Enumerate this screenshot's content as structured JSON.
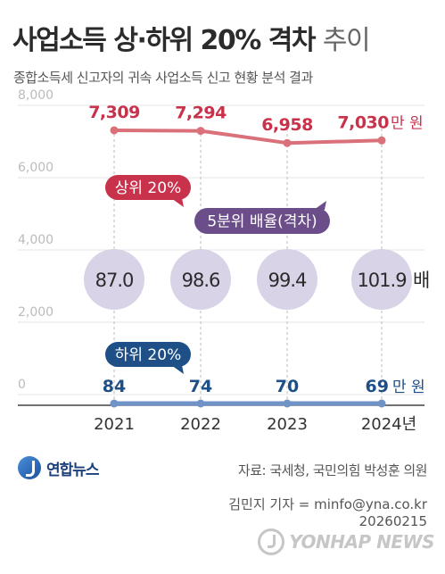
{
  "header": {
    "title": "사업소득 상·하위 20% 격차",
    "title_suffix": "추이",
    "subtitle": "종합소득세 신고자의 귀속 사업소득 신고 현황 분석 결과"
  },
  "chart_data": {
    "type": "line",
    "categories": [
      "2021",
      "2022",
      "2023",
      "2024년"
    ],
    "ylim": [
      0,
      8000
    ],
    "y_ticks": [
      "0",
      "2,000",
      "4,000",
      "6,000",
      "8,000"
    ],
    "grid": true,
    "unit": "만 원",
    "series": [
      {
        "name": "상위 20%",
        "values": [
          7309,
          7294,
          6958,
          7030
        ],
        "labels": [
          "7,309",
          "7,294",
          "6,958",
          "7,030"
        ],
        "color": "#d9707a"
      },
      {
        "name": "하위 20%",
        "values": [
          84,
          74,
          70,
          69
        ],
        "labels": [
          "84",
          "74",
          "70",
          "69"
        ],
        "color": "#6f92c7"
      }
    ],
    "ratio": {
      "name": "5분위 배율",
      "name_suffix": "(격차)",
      "values": [
        87.0,
        98.6,
        99.4,
        101.9
      ],
      "labels": [
        "87.0",
        "98.6",
        "99.4",
        "101.9"
      ],
      "unit": "배"
    },
    "colors": {
      "top_label": "#c8324b",
      "top_line": "#d9707a",
      "bottom_label": "#1e4f86",
      "bottom_line": "#6f92c7",
      "ratio_badge": "#6b4d8a",
      "ratio_bubble": "#d9d3e8"
    }
  },
  "footer": {
    "logo": "연합뉴스",
    "source": "자료: 국세청, 국민의힘 박성훈 의원",
    "reporter": "김민지 기자 = minfo@yna.co.kr",
    "date": "20260215",
    "watermark": "YONHAP NEWS"
  }
}
